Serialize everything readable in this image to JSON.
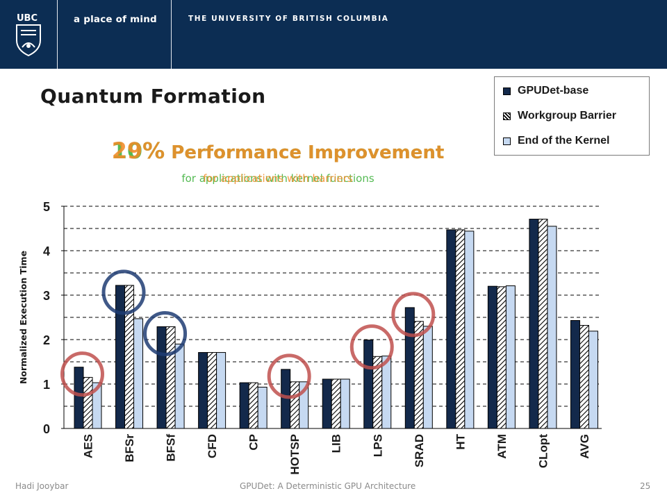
{
  "header": {
    "tagline": "a place of mind",
    "university": "THE UNIVERSITY OF BRITISH COLUMBIA",
    "logo_text": "UBC"
  },
  "slide": {
    "title": "Quantum Formation"
  },
  "annotations": {
    "green": {
      "percent": "10%",
      "headline": " Performance Improvement",
      "sub": "for applications with kernel functions",
      "color": "#46b545"
    },
    "orange": {
      "percent": "29%",
      "headline": " Performance Improvement",
      "sub": "for applications with barriers",
      "color": "#f28c28"
    }
  },
  "legend": {
    "items": [
      {
        "label": "GPUDet-base",
        "color": "#13294b",
        "pattern": "solid"
      },
      {
        "label": "Workgroup Barrier",
        "color": "#ffffff",
        "pattern": "hatch"
      },
      {
        "label": "End of the Kernel",
        "color": "#c6d9f1",
        "pattern": "solid"
      }
    ]
  },
  "chart_data": {
    "type": "bar",
    "ylabel": "Normalized Execution Time",
    "xlabel": "",
    "ylim": [
      0,
      5
    ],
    "yticks": [
      "0",
      "1",
      "2",
      "3",
      "4",
      "5"
    ],
    "grid": "dashed horizontal",
    "legend_position": "top-right",
    "categories": [
      "AES",
      "BFSr",
      "BFSf",
      "CFD",
      "CP",
      "HOTSP",
      "LIB",
      "LPS",
      "SRAD",
      "HT",
      "ATM",
      "CLopt",
      "AVG"
    ],
    "series": [
      {
        "name": "GPUDet-base",
        "color": "#13294b",
        "values": [
          1.38,
          3.22,
          2.29,
          1.71,
          1.03,
          1.33,
          1.11,
          1.99,
          2.72,
          4.47,
          3.2,
          4.71,
          2.43
        ]
      },
      {
        "name": "Workgroup Barrier",
        "color": "hatch",
        "values": [
          1.15,
          3.22,
          2.29,
          1.71,
          1.03,
          1.05,
          1.11,
          1.62,
          2.41,
          4.47,
          3.19,
          4.71,
          2.32
        ]
      },
      {
        "name": "End of the Kernel",
        "color": "#c6d9f1",
        "values": [
          1.03,
          2.47,
          1.9,
          1.71,
          0.93,
          1.05,
          1.11,
          1.63,
          2.3,
          4.44,
          3.21,
          4.55,
          2.19
        ]
      }
    ],
    "highlights": {
      "red_circles": [
        "AES",
        "HOTSP",
        "LPS",
        "SRAD"
      ],
      "blue_circles": [
        "BFSr",
        "BFSf"
      ]
    }
  },
  "footer": {
    "author": "Hadi Jooybar",
    "title": "GPUDet: A Deterministic GPU Architecture",
    "page": "25"
  }
}
